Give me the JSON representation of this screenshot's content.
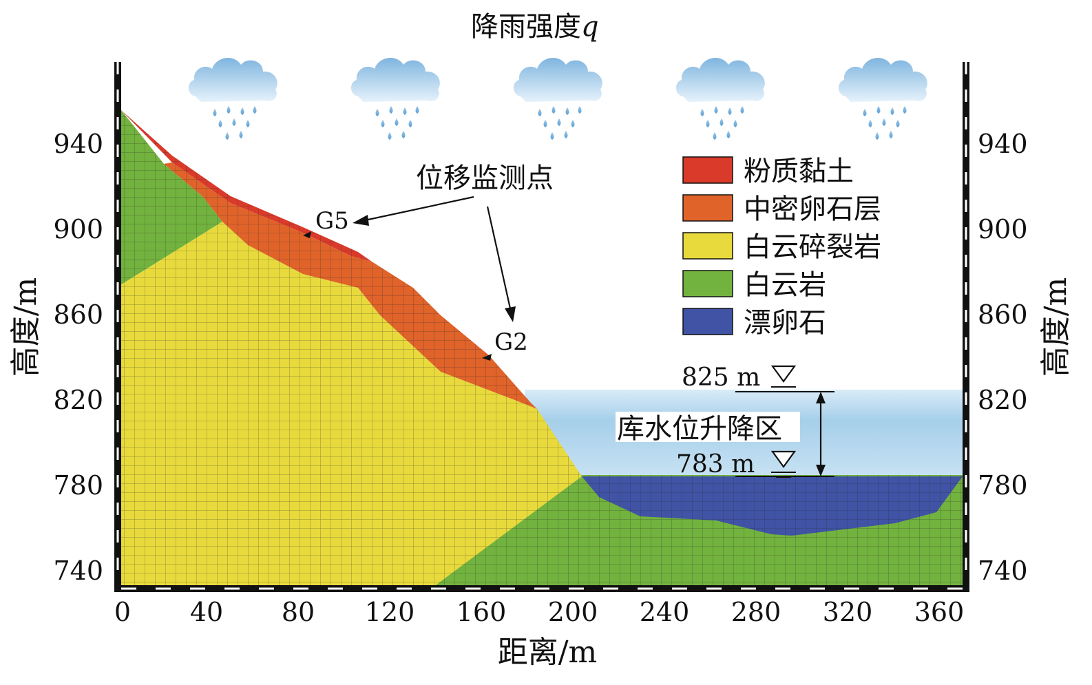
{
  "title": {
    "text": "降雨强度",
    "var": "q"
  },
  "axes": {
    "x": {
      "label": "距离/m",
      "ticks": [
        "0",
        "40",
        "80",
        "120",
        "160",
        "200",
        "240",
        "280",
        "320",
        "360"
      ]
    },
    "y_left": {
      "label": "高度/m",
      "ticks": [
        "940",
        "900",
        "860",
        "820",
        "780",
        "740"
      ]
    },
    "y_right": {
      "label": "高度/m",
      "ticks": [
        "940",
        "900",
        "860",
        "820",
        "780",
        "740"
      ]
    }
  },
  "annotations": {
    "monitor_title": "位移监测点",
    "points": [
      "G5",
      "G2"
    ],
    "level_high": "825 m",
    "level_low": "783 m",
    "water_zone": "库水位升降区"
  },
  "legend": [
    {
      "label": "粉质黏土",
      "color": "#d93a2a"
    },
    {
      "label": "中密卵石层",
      "color": "#e0632a"
    },
    {
      "label": "白云碎裂岩",
      "color": "#e8da3c"
    },
    {
      "label": "白云岩",
      "color": "#72b23e"
    },
    {
      "label": "漂卵石",
      "color": "#4053a5"
    }
  ],
  "icons": {
    "cloud": "rain-cloud-icon",
    "level": "water-level-triangle-icon"
  }
}
